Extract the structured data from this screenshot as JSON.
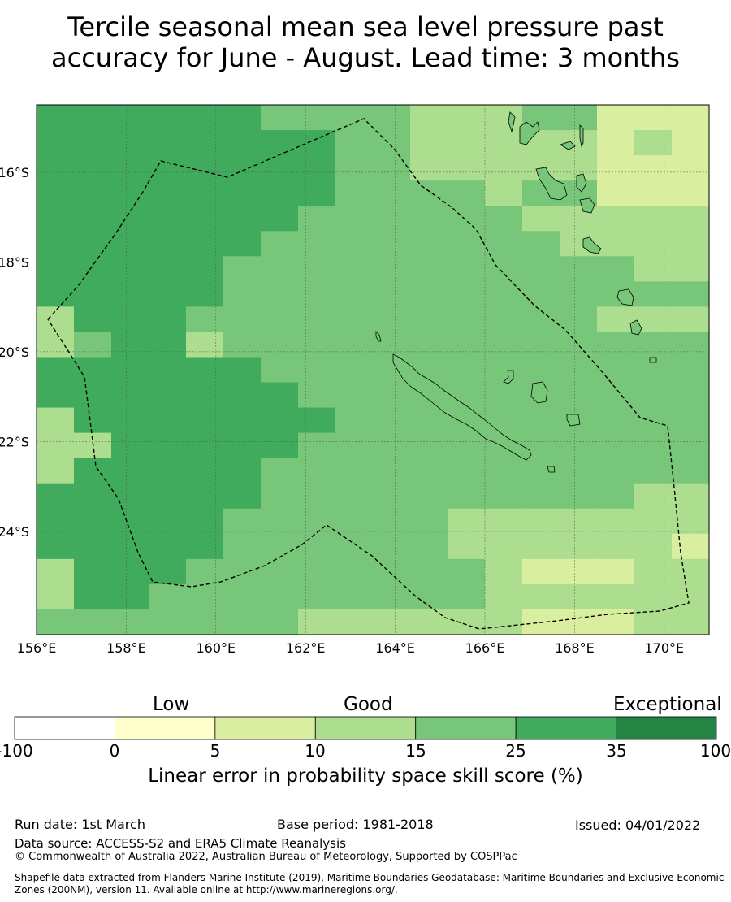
{
  "title_lines": [
    "Tercile seasonal mean sea level pressure past",
    "accuracy for June - August. Lead time: 3 months"
  ],
  "map": {
    "lat_labels": [
      "16°S",
      "18°S",
      "20°S",
      "22°S",
      "24°S"
    ],
    "lon_labels": [
      "156°E",
      "158°E",
      "160°E",
      "162°E",
      "164°E",
      "166°E",
      "168°E",
      "170°E"
    ],
    "lon_range": [
      156,
      171
    ],
    "lat_range": [
      -14.5,
      -26.3
    ],
    "colors": {
      "c5_10": "#d9ef9f",
      "c10_15": "#addd8e",
      "c15_25": "#78c679",
      "c25_35": "#41ab5d",
      "c35_100": "#238443",
      "c0_5": "#ffffcc"
    }
  },
  "colorbar": {
    "categories": {
      "low": "Low",
      "good": "Good",
      "exceptional": "Exceptional"
    },
    "ticks": [
      "-100",
      "0",
      "5",
      "10",
      "15",
      "25",
      "35",
      "100"
    ],
    "segment_colors": [
      "#ffffff",
      "#ffffcc",
      "#d9ef9f",
      "#addd8e",
      "#78c679",
      "#41ab5d",
      "#238443"
    ],
    "label": "Linear error in probability space skill score (%)"
  },
  "footer": {
    "run_date": "Run date: 1st March",
    "base_period": "Base period: 1981-2018",
    "issued": "Issued: 04/01/2022",
    "data_source": "Data source: ACCESS-S2 and ERA5 Climate Reanalysis",
    "copyright": "© Commonwealth of Australia 2022, Australian Bureau of Meteorology, Supported by COSPPac",
    "shapefile": "Shapefile data extracted from Flanders Marine Institute (2019), Maritime Boundaries Geodatabase: Maritime Boundaries and Exclusive Economic Zones (200NM), version 11. Available online at http://www.marineregions.org/."
  }
}
